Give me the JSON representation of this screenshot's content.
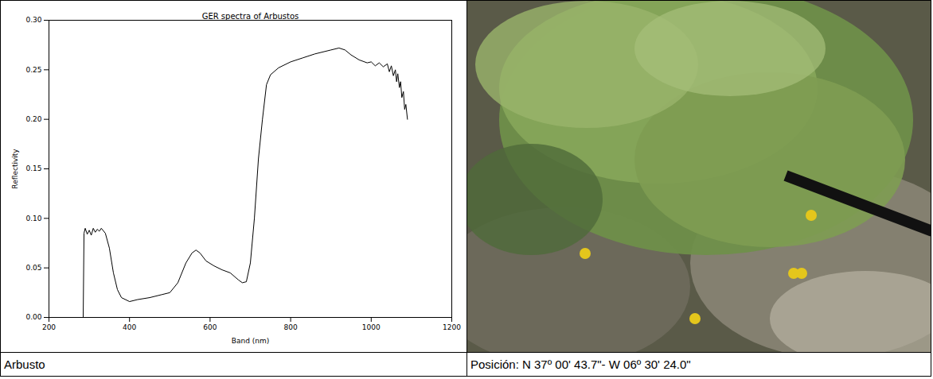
{
  "chart_data": {
    "type": "line",
    "title": "GER spectra of Arbustos",
    "x_label": "Band (nm)",
    "y_label": "Reflectivity",
    "xlim": [
      200,
      1200
    ],
    "xticks": [
      200,
      400,
      600,
      800,
      1000,
      1200
    ],
    "ylim": [
      0,
      0.3
    ],
    "yticks": [
      {
        "value": 0,
        "label": "0.00"
      },
      {
        "value": 0.05,
        "label": "0.05"
      },
      {
        "value": 0.1,
        "label": "0.10"
      },
      {
        "value": 0.15,
        "label": "0.15"
      },
      {
        "value": 0.2,
        "label": "0.20"
      },
      {
        "value": 0.25,
        "label": "0.25"
      },
      {
        "value": 0.3,
        "label": "0.30"
      }
    ],
    "grid": false,
    "x": [
      285,
      287,
      290,
      295,
      300,
      305,
      310,
      315,
      320,
      325,
      330,
      340,
      350,
      360,
      370,
      380,
      400,
      420,
      450,
      480,
      500,
      520,
      540,
      555,
      565,
      575,
      590,
      610,
      630,
      650,
      670,
      680,
      690,
      700,
      710,
      720,
      730,
      740,
      750,
      770,
      800,
      830,
      860,
      900,
      920,
      935,
      950,
      970,
      990,
      1000,
      1010,
      1020,
      1030,
      1040,
      1045,
      1050,
      1055,
      1060,
      1063,
      1066,
      1070,
      1073,
      1076,
      1080,
      1083,
      1086,
      1090
    ],
    "series": [
      {
        "name": "Arbustos",
        "color": "#000000",
        "values": [
          0.0,
          0.085,
          0.09,
          0.084,
          0.088,
          0.083,
          0.09,
          0.086,
          0.089,
          0.087,
          0.09,
          0.085,
          0.07,
          0.045,
          0.028,
          0.02,
          0.016,
          0.018,
          0.02,
          0.023,
          0.025,
          0.035,
          0.055,
          0.065,
          0.068,
          0.065,
          0.057,
          0.052,
          0.048,
          0.045,
          0.038,
          0.035,
          0.036,
          0.055,
          0.1,
          0.16,
          0.2,
          0.235,
          0.245,
          0.252,
          0.258,
          0.262,
          0.266,
          0.27,
          0.272,
          0.27,
          0.265,
          0.26,
          0.257,
          0.258,
          0.254,
          0.257,
          0.253,
          0.256,
          0.248,
          0.254,
          0.244,
          0.25,
          0.238,
          0.246,
          0.232,
          0.238,
          0.222,
          0.228,
          0.21,
          0.215,
          0.2
        ]
      }
    ]
  },
  "caption": {
    "left": "Arbusto",
    "right": "Posición:  N 37º 00' 43.7\"- W 06º 30' 24.0\""
  }
}
